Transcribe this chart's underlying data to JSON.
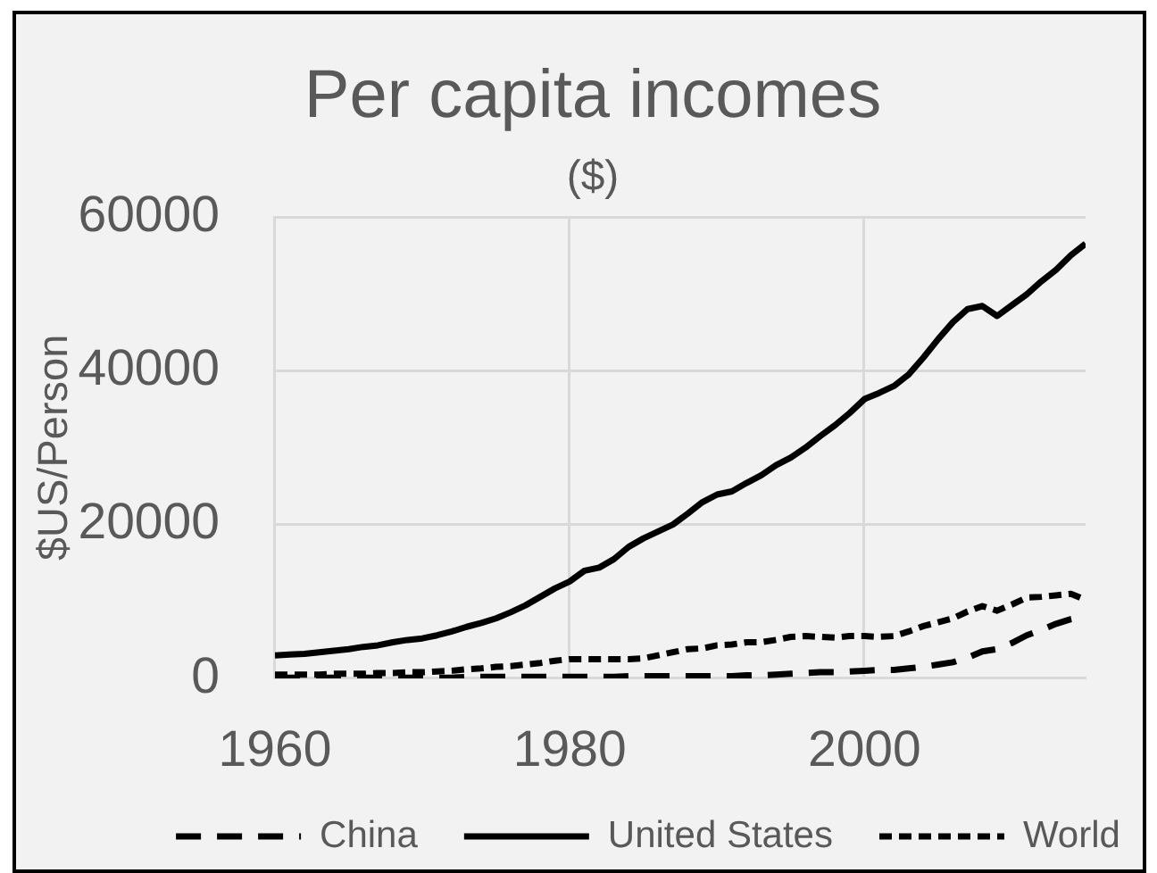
{
  "chart_data": {
    "type": "line",
    "title": "Per capita incomes",
    "subtitle": "($)",
    "ylabel": "$US/Person",
    "x": [
      1960,
      1961,
      1962,
      1963,
      1964,
      1965,
      1966,
      1967,
      1968,
      1969,
      1970,
      1971,
      1972,
      1973,
      1974,
      1975,
      1976,
      1977,
      1978,
      1979,
      1980,
      1981,
      1982,
      1983,
      1984,
      1985,
      1986,
      1987,
      1988,
      1989,
      1990,
      1991,
      1992,
      1993,
      1994,
      1995,
      1996,
      1997,
      1998,
      1999,
      2000,
      2001,
      2002,
      2003,
      2004,
      2005,
      2006,
      2007,
      2008,
      2009,
      2010,
      2011,
      2012,
      2013,
      2014,
      2015
    ],
    "xlim": [
      1960,
      2015
    ],
    "xticks": [
      1960,
      1980,
      2000
    ],
    "ylim": [
      0,
      60000
    ],
    "yticks": [
      0,
      20000,
      40000,
      60000
    ],
    "grid": true,
    "legend": "bottom",
    "marker": "none",
    "series": [
      {
        "name": "China",
        "color": "#000000",
        "line_style": "dashed",
        "values": [
          100,
          100,
          100,
          100,
          100,
          100,
          100,
          100,
          100,
          100,
          100,
          100,
          100,
          200,
          200,
          200,
          200,
          200,
          200,
          200,
          200,
          200,
          200,
          200,
          300,
          300,
          300,
          300,
          300,
          300,
          300,
          300,
          400,
          400,
          500,
          600,
          700,
          800,
          800,
          900,
          1000,
          1100,
          1100,
          1300,
          1500,
          1800,
          2100,
          2700,
          3500,
          3800,
          4600,
          5600,
          6300,
          7100,
          7700,
          8100
        ]
      },
      {
        "name": "United States",
        "color": "#000000",
        "line_style": "solid",
        "values": [
          3000,
          3100,
          3200,
          3400,
          3600,
          3800,
          4100,
          4300,
          4700,
          5000,
          5200,
          5600,
          6100,
          6700,
          7200,
          7800,
          8600,
          9500,
          10600,
          11700,
          12600,
          14000,
          14400,
          15500,
          17100,
          18200,
          19100,
          20000,
          21400,
          22900,
          23900,
          24300,
          25400,
          26400,
          27700,
          28700,
          30000,
          31500,
          32900,
          34500,
          36300,
          37100,
          38000,
          39500,
          41700,
          44100,
          46300,
          48000,
          48400,
          47100,
          48500,
          49900,
          51600,
          53100,
          55000,
          56500
        ]
      },
      {
        "name": "World",
        "color": "#000000",
        "line_style": "dotted",
        "values": [
          500,
          500,
          500,
          500,
          600,
          600,
          600,
          700,
          700,
          800,
          800,
          900,
          1000,
          1200,
          1300,
          1500,
          1600,
          1800,
          2000,
          2300,
          2500,
          2500,
          2500,
          2500,
          2500,
          2600,
          3000,
          3400,
          3800,
          3900,
          4300,
          4400,
          4700,
          4700,
          5000,
          5400,
          5500,
          5400,
          5300,
          5500,
          5500,
          5400,
          5500,
          6100,
          6800,
          7300,
          7800,
          8700,
          9400,
          8800,
          9600,
          10500,
          10600,
          10800,
          11000,
          10200
        ]
      }
    ]
  }
}
